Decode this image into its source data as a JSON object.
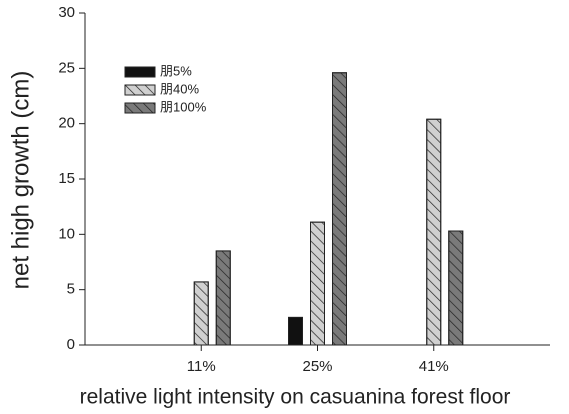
{
  "chart_data": {
    "type": "bar",
    "ylabel": "net high growth (cm)",
    "xlabel": "relative light intensity on casuanina forest floor",
    "categories": [
      "11%",
      "25%",
      "41%"
    ],
    "series": [
      {
        "name": "朋5%",
        "color": "#111111",
        "hatch": false,
        "values": [
          null,
          2.5,
          null
        ]
      },
      {
        "name": "朋40%",
        "color": "#d0d0d0",
        "hatch": true,
        "values": [
          5.7,
          11.1,
          20.4
        ]
      },
      {
        "name": "朋100%",
        "color": "#7a7a7a",
        "hatch": true,
        "values": [
          8.5,
          24.6,
          10.3
        ]
      }
    ],
    "ylim": [
      0,
      30
    ],
    "yticks": [
      0,
      5,
      10,
      15,
      20,
      25,
      30
    ],
    "legend": "upper left"
  }
}
